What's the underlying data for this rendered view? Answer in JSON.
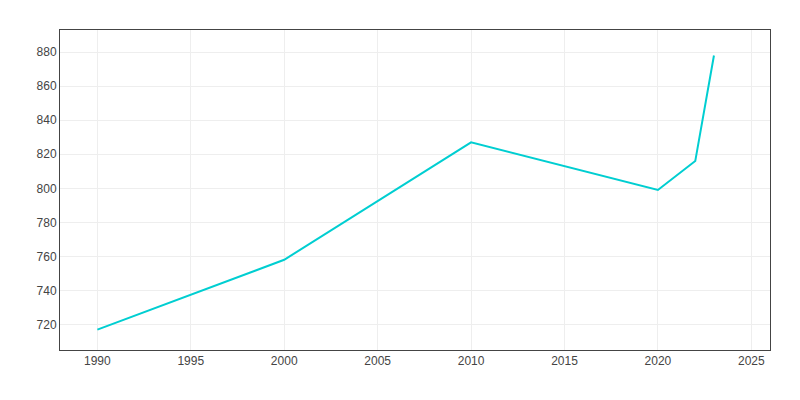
{
  "chart_data": {
    "type": "line",
    "x": [
      1990,
      2000,
      2010,
      2020,
      2022,
      2023
    ],
    "values": [
      717,
      758,
      827,
      799,
      816,
      878
    ],
    "color": "#00CED1",
    "xlim": [
      1988,
      2026
    ],
    "ylim": [
      705,
      893
    ],
    "xticks": [
      1990,
      1995,
      2000,
      2005,
      2010,
      2015,
      2020,
      2025
    ],
    "yticks": [
      720,
      740,
      760,
      780,
      800,
      820,
      840,
      860,
      880
    ],
    "grid": true
  }
}
